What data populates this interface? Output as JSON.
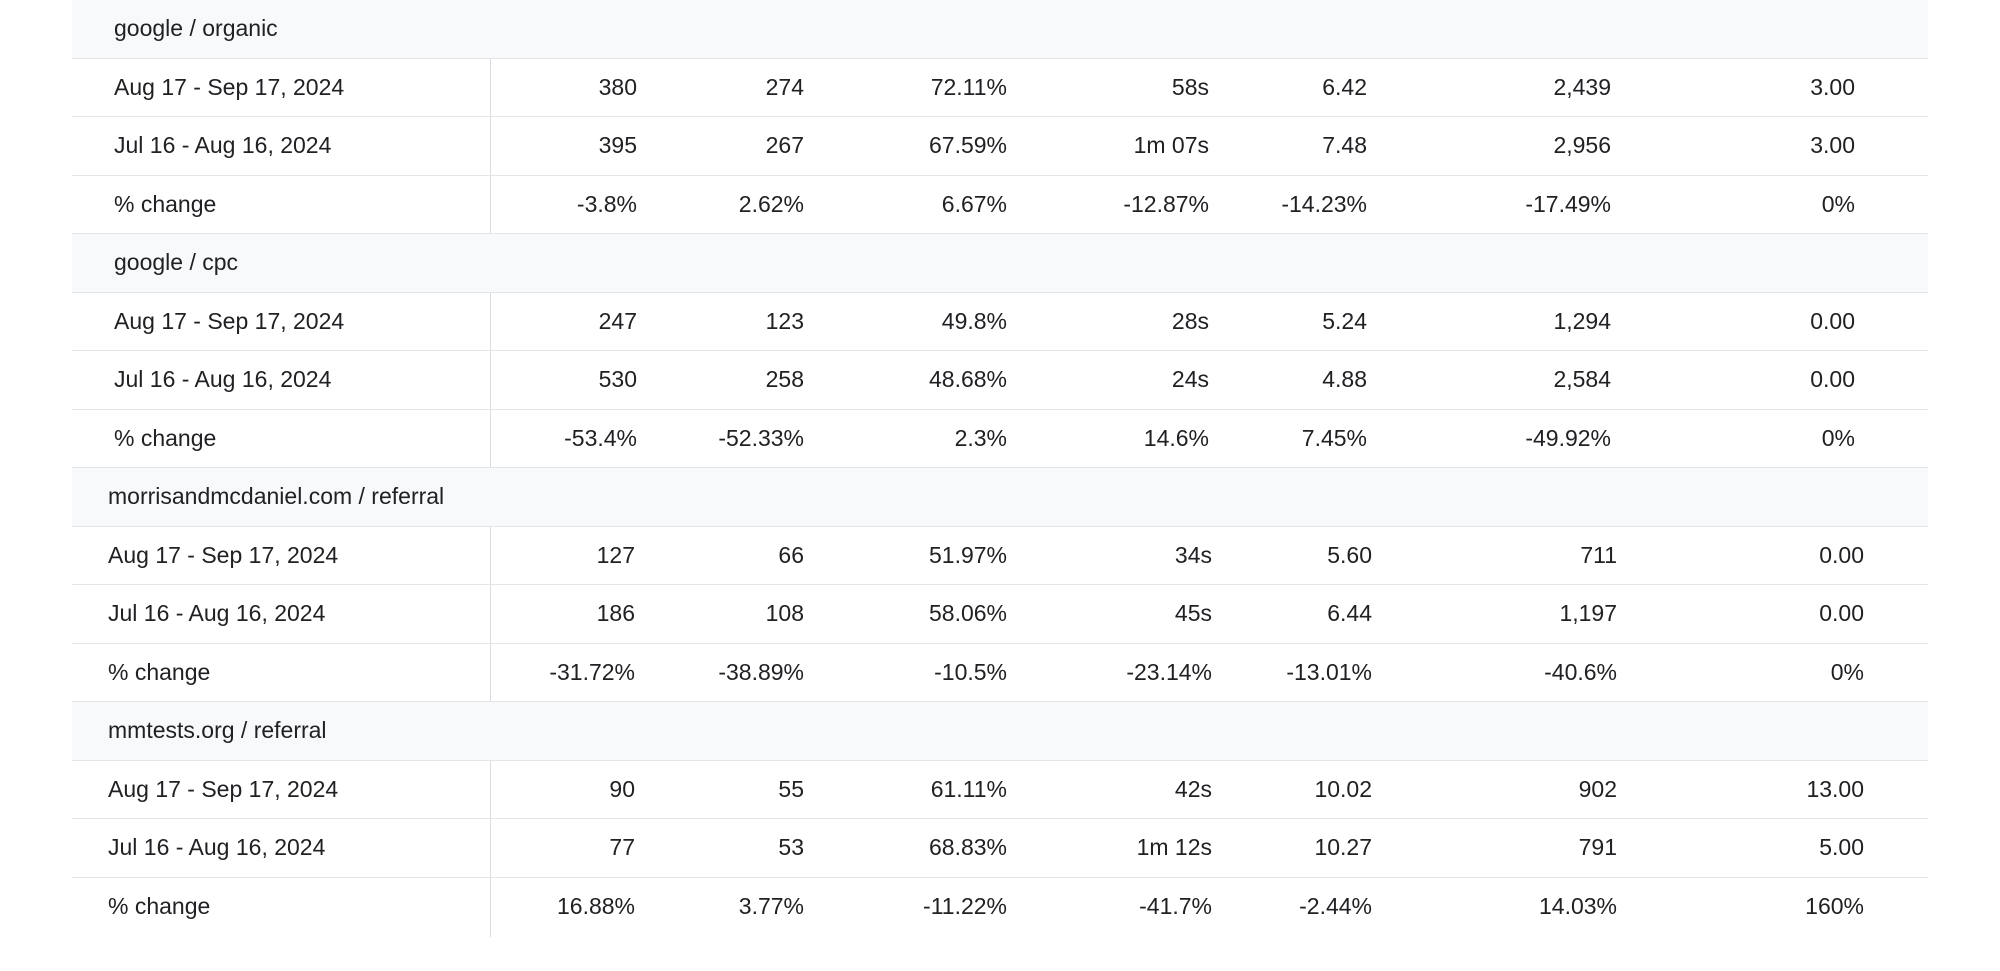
{
  "groups": [
    {
      "name": "google / organic",
      "rows": [
        {
          "label": "Aug 17 - Sep 17, 2024",
          "values": [
            "380",
            "274",
            "72.11%",
            "58s",
            "6.42",
            "2,439",
            "3.00"
          ]
        },
        {
          "label": "Jul 16 - Aug 16, 2024",
          "values": [
            "395",
            "267",
            "67.59%",
            "1m 07s",
            "7.48",
            "2,956",
            "3.00"
          ]
        },
        {
          "label": "% change",
          "values": [
            "-3.8%",
            "2.62%",
            "6.67%",
            "-12.87%",
            "-14.23%",
            "-17.49%",
            "0%"
          ]
        }
      ]
    },
    {
      "name": "google / cpc",
      "rows": [
        {
          "label": "Aug 17 - Sep 17, 2024",
          "values": [
            "247",
            "123",
            "49.8%",
            "28s",
            "5.24",
            "1,294",
            "0.00"
          ]
        },
        {
          "label": "Jul 16 - Aug 16, 2024",
          "values": [
            "530",
            "258",
            "48.68%",
            "24s",
            "4.88",
            "2,584",
            "0.00"
          ]
        },
        {
          "label": "% change",
          "values": [
            "-53.4%",
            "-52.33%",
            "2.3%",
            "14.6%",
            "7.45%",
            "-49.92%",
            "0%"
          ]
        }
      ]
    },
    {
      "name": "morrisandmcdaniel.com / referral",
      "rows": [
        {
          "label": "Aug 17 - Sep 17, 2024",
          "values": [
            "127",
            "66",
            "51.97%",
            "34s",
            "5.60",
            "711",
            "0.00"
          ]
        },
        {
          "label": "Jul 16 - Aug 16, 2024",
          "values": [
            "186",
            "108",
            "58.06%",
            "45s",
            "6.44",
            "1,197",
            "0.00"
          ]
        },
        {
          "label": "% change",
          "values": [
            "-31.72%",
            "-38.89%",
            "-10.5%",
            "-23.14%",
            "-13.01%",
            "-40.6%",
            "0%"
          ]
        }
      ]
    },
    {
      "name": "mmtests.org / referral",
      "rows": [
        {
          "label": "Aug 17 - Sep 17, 2024",
          "values": [
            "90",
            "55",
            "61.11%",
            "42s",
            "10.02",
            "902",
            "13.00"
          ]
        },
        {
          "label": "Jul 16 - Aug 16, 2024",
          "values": [
            "77",
            "53",
            "68.83%",
            "1m 12s",
            "10.27",
            "791",
            "5.00"
          ]
        },
        {
          "label": "% change",
          "values": [
            "16.88%",
            "3.77%",
            "-11.22%",
            "-41.7%",
            "-2.44%",
            "14.03%",
            "160%"
          ]
        }
      ]
    }
  ]
}
